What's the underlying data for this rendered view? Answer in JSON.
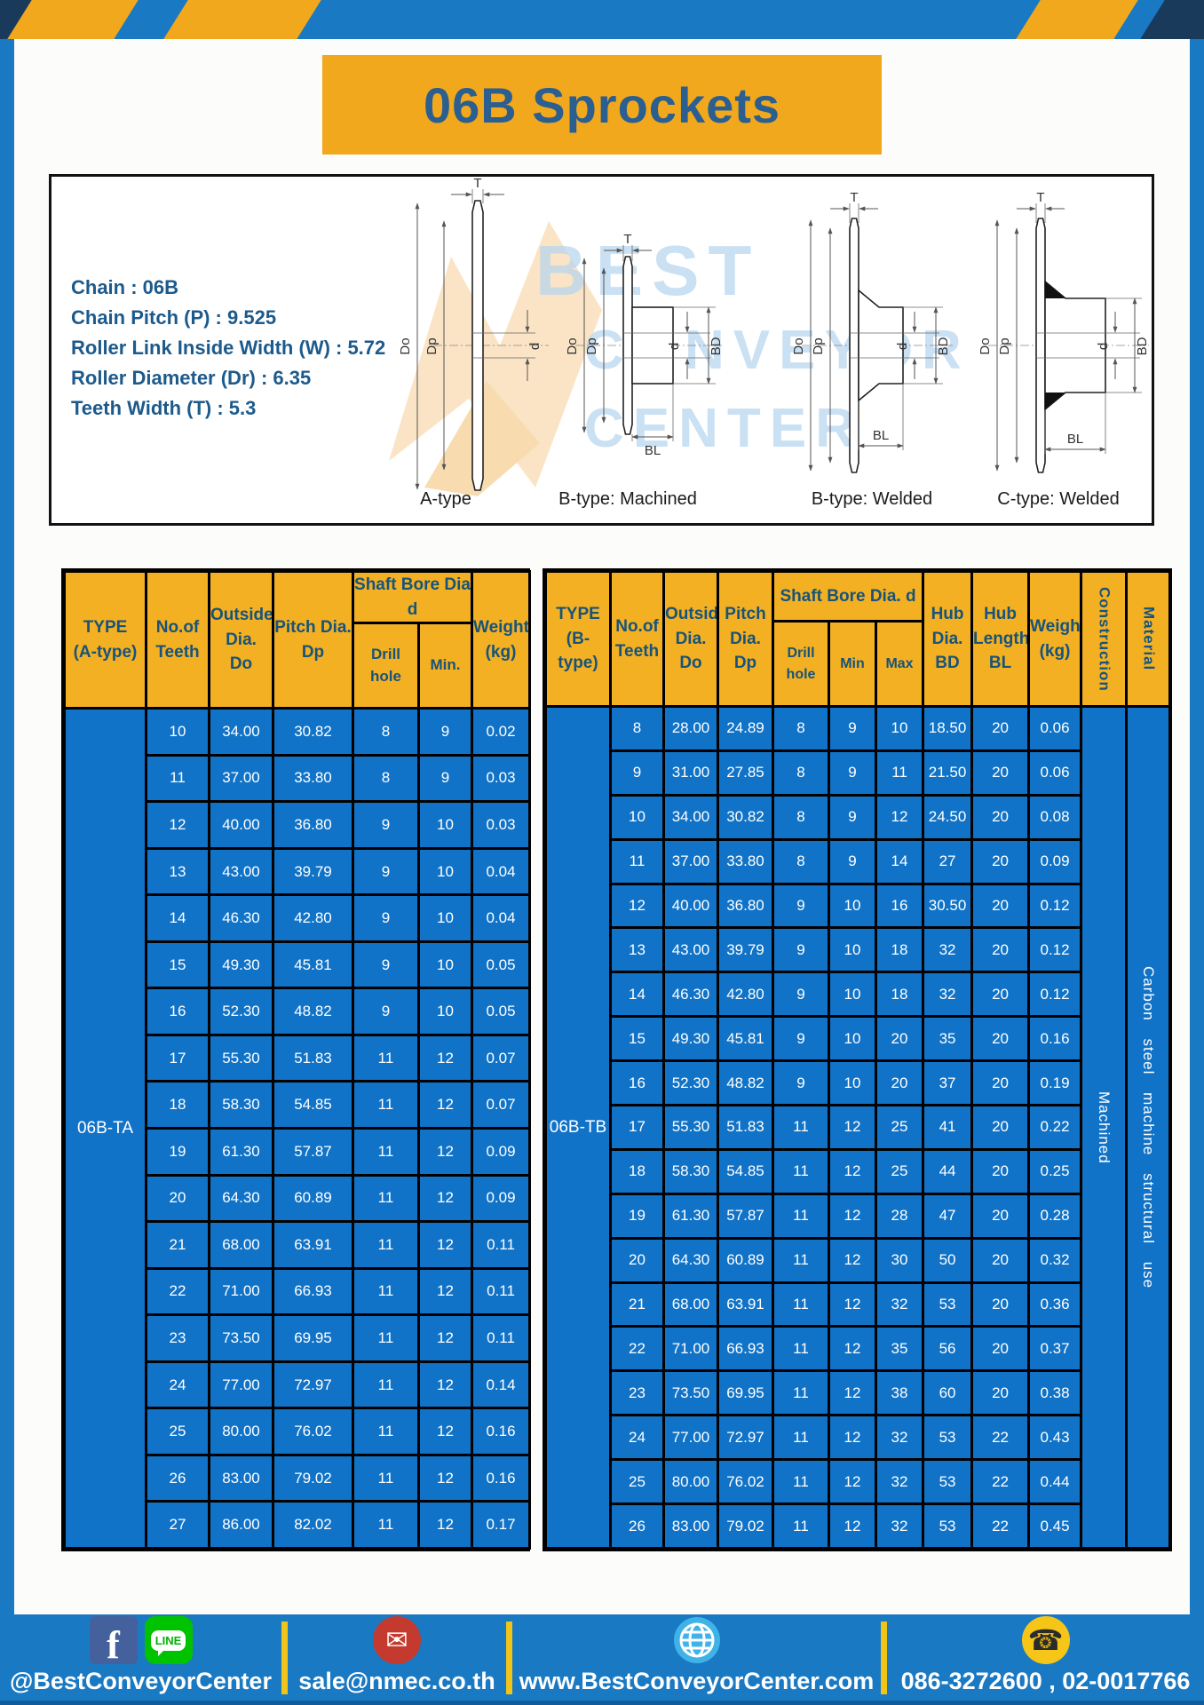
{
  "banner": {
    "title": "06B Sprockets"
  },
  "specs": [
    "Chain : 06B",
    "Chain Pitch (P) : 9.525",
    "Roller Link Inside Width (W) : 5.72",
    "Roller Diameter (Dr) : 6.35",
    "Teeth Width (T) : 5.3"
  ],
  "diagram": {
    "types": [
      "A-type",
      "B-type: Machined",
      "B-type: Welded",
      "C-type: Welded"
    ],
    "dims": {
      "T": "T",
      "Do": "Do",
      "Dp": "Dp",
      "d": "d",
      "BD": "BD",
      "BL": "BL"
    },
    "watermark": [
      "BEST",
      "CONVEYOR",
      "CENTER"
    ]
  },
  "tableA": {
    "headers": {
      "type": "TYPE\n(A-type)",
      "teeth": "No.of\nTeeth",
      "outside": "Outside\nDia.\nDo",
      "pitch": "Pitch Dia.\nDp",
      "shaft": "Shaft Bore Dia d",
      "drill": "Drill hole",
      "min": "Min.",
      "weight": "Weight\n(kg)"
    },
    "type_value": "06B-TA",
    "rows": [
      [
        "10",
        "34.00",
        "30.82",
        "8",
        "9",
        "0.02"
      ],
      [
        "11",
        "37.00",
        "33.80",
        "8",
        "9",
        "0.03"
      ],
      [
        "12",
        "40.00",
        "36.80",
        "9",
        "10",
        "0.03"
      ],
      [
        "13",
        "43.00",
        "39.79",
        "9",
        "10",
        "0.04"
      ],
      [
        "14",
        "46.30",
        "42.80",
        "9",
        "10",
        "0.04"
      ],
      [
        "15",
        "49.30",
        "45.81",
        "9",
        "10",
        "0.05"
      ],
      [
        "16",
        "52.30",
        "48.82",
        "9",
        "10",
        "0.05"
      ],
      [
        "17",
        "55.30",
        "51.83",
        "11",
        "12",
        "0.07"
      ],
      [
        "18",
        "58.30",
        "54.85",
        "11",
        "12",
        "0.07"
      ],
      [
        "19",
        "61.30",
        "57.87",
        "11",
        "12",
        "0.09"
      ],
      [
        "20",
        "64.30",
        "60.89",
        "11",
        "12",
        "0.09"
      ],
      [
        "21",
        "68.00",
        "63.91",
        "11",
        "12",
        "0.11"
      ],
      [
        "22",
        "71.00",
        "66.93",
        "11",
        "12",
        "0.11"
      ],
      [
        "23",
        "73.50",
        "69.95",
        "11",
        "12",
        "0.11"
      ],
      [
        "24",
        "77.00",
        "72.97",
        "11",
        "12",
        "0.14"
      ],
      [
        "25",
        "80.00",
        "76.02",
        "11",
        "12",
        "0.16"
      ],
      [
        "26",
        "83.00",
        "79.02",
        "11",
        "12",
        "0.16"
      ],
      [
        "27",
        "86.00",
        "82.02",
        "11",
        "12",
        "0.17"
      ]
    ]
  },
  "tableB": {
    "headers": {
      "type": "TYPE\n(B-type)",
      "teeth": "No.of\nTeeth",
      "outside": "Outside\nDia.\nDo",
      "pitch": "Pitch\nDia.\nDp",
      "shaft": "Shaft Bore Dia. d",
      "drill": "Drill hole",
      "min": "Min",
      "max": "Max",
      "hub_dia": "Hub\nDia.\nBD",
      "hub_len": "Hub\nLength\nBL",
      "weight": "Weight\n(kg)",
      "construction": "Construction",
      "material": "Material"
    },
    "type_value": "06B-TB",
    "construction_value": "Machined",
    "material_value": "Carbon steel machine structural use",
    "rows": [
      [
        "8",
        "28.00",
        "24.89",
        "8",
        "9",
        "10",
        "18.50",
        "20",
        "0.06"
      ],
      [
        "9",
        "31.00",
        "27.85",
        "8",
        "9",
        "11",
        "21.50",
        "20",
        "0.06"
      ],
      [
        "10",
        "34.00",
        "30.82",
        "8",
        "9",
        "12",
        "24.50",
        "20",
        "0.08"
      ],
      [
        "11",
        "37.00",
        "33.80",
        "8",
        "9",
        "14",
        "27",
        "20",
        "0.09"
      ],
      [
        "12",
        "40.00",
        "36.80",
        "9",
        "10",
        "16",
        "30.50",
        "20",
        "0.12"
      ],
      [
        "13",
        "43.00",
        "39.79",
        "9",
        "10",
        "18",
        "32",
        "20",
        "0.12"
      ],
      [
        "14",
        "46.30",
        "42.80",
        "9",
        "10",
        "18",
        "32",
        "20",
        "0.12"
      ],
      [
        "15",
        "49.30",
        "45.81",
        "9",
        "10",
        "20",
        "35",
        "20",
        "0.16"
      ],
      [
        "16",
        "52.30",
        "48.82",
        "9",
        "10",
        "20",
        "37",
        "20",
        "0.19"
      ],
      [
        "17",
        "55.30",
        "51.83",
        "11",
        "12",
        "25",
        "41",
        "20",
        "0.22"
      ],
      [
        "18",
        "58.30",
        "54.85",
        "11",
        "12",
        "25",
        "44",
        "20",
        "0.25"
      ],
      [
        "19",
        "61.30",
        "57.87",
        "11",
        "12",
        "28",
        "47",
        "20",
        "0.28"
      ],
      [
        "20",
        "64.30",
        "60.89",
        "11",
        "12",
        "30",
        "50",
        "20",
        "0.32"
      ],
      [
        "21",
        "68.00",
        "63.91",
        "11",
        "12",
        "32",
        "53",
        "20",
        "0.36"
      ],
      [
        "22",
        "71.00",
        "66.93",
        "11",
        "12",
        "35",
        "56",
        "20",
        "0.37"
      ],
      [
        "23",
        "73.50",
        "69.95",
        "11",
        "12",
        "38",
        "60",
        "20",
        "0.38"
      ],
      [
        "24",
        "77.00",
        "72.97",
        "11",
        "12",
        "32",
        "53",
        "22",
        "0.43"
      ],
      [
        "25",
        "80.00",
        "76.02",
        "11",
        "12",
        "32",
        "53",
        "22",
        "0.44"
      ],
      [
        "26",
        "83.00",
        "79.02",
        "11",
        "12",
        "32",
        "53",
        "22",
        "0.45"
      ]
    ]
  },
  "footer": {
    "social": "@BestConveyorCenter",
    "email": "sale@nmec.co.th",
    "website": "www.BestConveyorCenter.com",
    "phone": "086-3272600 , 02-0017766",
    "icons": {
      "facebook": "f",
      "line": "LINE",
      "email": "✉",
      "phone": "☎"
    }
  },
  "colors": {
    "frame_blue": "#1A79C3",
    "cell_blue": "#1173C7",
    "banner_yellow": "#F2A81D",
    "header_yellow": "#F3B023",
    "navy": "#1A3A5C",
    "title_blue": "#2A5F90",
    "divider_yellow": "#F0C419"
  }
}
